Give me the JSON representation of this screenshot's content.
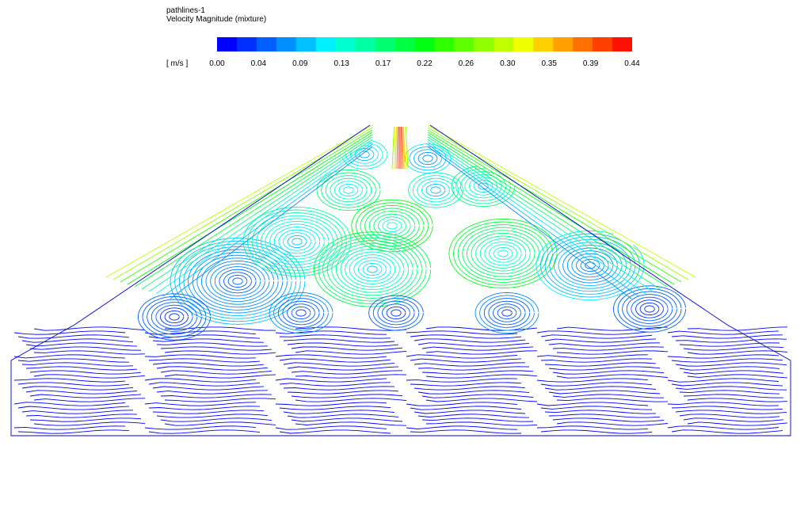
{
  "chart_data": {
    "type": "heatmap",
    "title": "pathlines-1",
    "subtitle": "Velocity Magnitude (mixture)",
    "unit_label": "[ m/s ]",
    "colorbar": {
      "min": 0.0,
      "max": 0.44,
      "tick_labels": [
        "0.00",
        "0.04",
        "0.09",
        "0.13",
        "0.17",
        "0.22",
        "0.26",
        "0.30",
        "0.35",
        "0.39",
        "0.44"
      ],
      "colors": [
        "#0000ff",
        "#0030ff",
        "#0060ff",
        "#0090ff",
        "#00c0ff",
        "#00f0ff",
        "#00ffd0",
        "#00ffa0",
        "#00ff70",
        "#00ff40",
        "#00ff10",
        "#30ff00",
        "#60ff00",
        "#90ff00",
        "#c0ff00",
        "#f0ff00",
        "#ffd000",
        "#ffa000",
        "#ff7000",
        "#ff4000",
        "#ff1000"
      ]
    },
    "grid": false,
    "legend_position": "top"
  }
}
